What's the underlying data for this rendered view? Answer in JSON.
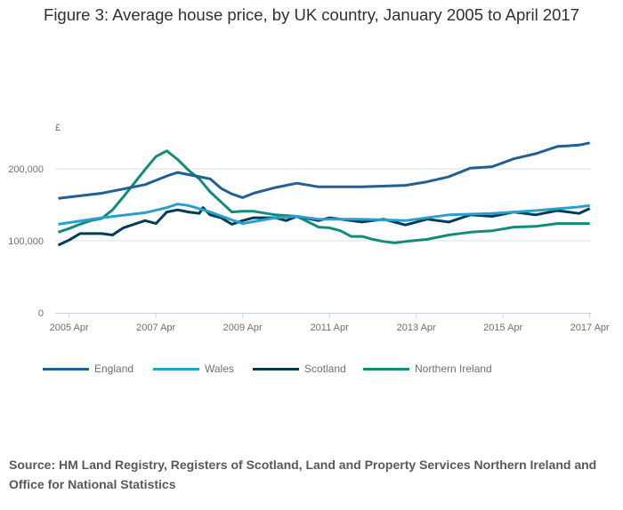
{
  "title": "Figure 3: Average house price, by UK country, January 2005 to April 2017",
  "source": "Source: HM Land Registry, Registers of Scotland, Land and Property Services Northern Ireland and Office for National Statistics",
  "chart_data": {
    "type": "line",
    "title": "Figure 3: Average house price, by UK country, January 2005 to April 2017",
    "ylabel": "£",
    "xlabel": "",
    "ylim": [
      0,
      250000
    ],
    "yticks": [
      0,
      100000,
      200000
    ],
    "ytick_labels": [
      "0",
      "100,000",
      "200,000"
    ],
    "xticks": [
      "2005-04",
      "2007-04",
      "2009-04",
      "2011-04",
      "2013-04",
      "2015-04",
      "2017-04"
    ],
    "xtick_labels": [
      "2005 Apr",
      "2007 Apr",
      "2009 Apr",
      "2011 Apr",
      "2013 Apr",
      "2015 Apr",
      "2017 Apr"
    ],
    "grid": true,
    "legend_position": "bottom",
    "series": [
      {
        "name": "England",
        "color": "#206095",
        "points": [
          [
            "2005-01",
            159000
          ],
          [
            "2006-01",
            166000
          ],
          [
            "2007-01",
            178000
          ],
          [
            "2007-07",
            190000
          ],
          [
            "2007-10",
            195000
          ],
          [
            "2008-01",
            192000
          ],
          [
            "2008-04",
            189000
          ],
          [
            "2008-07",
            186000
          ],
          [
            "2008-10",
            173000
          ],
          [
            "2009-01",
            165000
          ],
          [
            "2009-04",
            160000
          ],
          [
            "2009-07",
            166000
          ],
          [
            "2010-01",
            174000
          ],
          [
            "2010-07",
            180000
          ],
          [
            "2011-01",
            175000
          ],
          [
            "2012-01",
            175000
          ],
          [
            "2013-01",
            177000
          ],
          [
            "2013-07",
            182000
          ],
          [
            "2014-01",
            189000
          ],
          [
            "2014-07",
            201000
          ],
          [
            "2015-01",
            203000
          ],
          [
            "2015-07",
            214000
          ],
          [
            "2016-01",
            221000
          ],
          [
            "2016-07",
            231000
          ],
          [
            "2017-01",
            233000
          ],
          [
            "2017-04",
            236000
          ]
        ]
      },
      {
        "name": "Wales",
        "color": "#27a0cc",
        "points": [
          [
            "2005-01",
            123000
          ],
          [
            "2006-01",
            132000
          ],
          [
            "2007-01",
            139000
          ],
          [
            "2007-07",
            146000
          ],
          [
            "2007-10",
            151000
          ],
          [
            "2008-01",
            149000
          ],
          [
            "2008-07",
            140000
          ],
          [
            "2009-01",
            129000
          ],
          [
            "2009-04",
            124000
          ],
          [
            "2010-01",
            132000
          ],
          [
            "2010-07",
            134000
          ],
          [
            "2011-01",
            130000
          ],
          [
            "2012-01",
            130000
          ],
          [
            "2013-01",
            128000
          ],
          [
            "2014-01",
            136000
          ],
          [
            "2015-01",
            138000
          ],
          [
            "2016-01",
            142000
          ],
          [
            "2017-01",
            147000
          ],
          [
            "2017-04",
            149000
          ]
        ]
      },
      {
        "name": "Scotland",
        "color": "#003c57",
        "points": [
          [
            "2005-01",
            94000
          ],
          [
            "2005-04",
            101000
          ],
          [
            "2005-07",
            110000
          ],
          [
            "2006-01",
            110000
          ],
          [
            "2006-04",
            108000
          ],
          [
            "2006-07",
            118000
          ],
          [
            "2007-01",
            128000
          ],
          [
            "2007-04",
            124000
          ],
          [
            "2007-07",
            140000
          ],
          [
            "2007-10",
            143000
          ],
          [
            "2008-01",
            140000
          ],
          [
            "2008-04",
            138000
          ],
          [
            "2008-05",
            146000
          ],
          [
            "2008-07",
            136000
          ],
          [
            "2008-10",
            132000
          ],
          [
            "2009-01",
            123000
          ],
          [
            "2009-04",
            128000
          ],
          [
            "2009-07",
            132000
          ],
          [
            "2010-01",
            132000
          ],
          [
            "2010-04",
            128000
          ],
          [
            "2010-07",
            134000
          ],
          [
            "2011-01",
            128000
          ],
          [
            "2011-04",
            132000
          ],
          [
            "2012-01",
            126000
          ],
          [
            "2012-07",
            130000
          ],
          [
            "2013-01",
            122000
          ],
          [
            "2013-07",
            130000
          ],
          [
            "2014-01",
            126000
          ],
          [
            "2014-07",
            136000
          ],
          [
            "2015-01",
            134000
          ],
          [
            "2015-07",
            140000
          ],
          [
            "2016-01",
            136000
          ],
          [
            "2016-07",
            142000
          ],
          [
            "2017-01",
            138000
          ],
          [
            "2017-04",
            145000
          ]
        ]
      },
      {
        "name": "Northern Ireland",
        "color": "#118c7b",
        "points": [
          [
            "2005-01",
            112000
          ],
          [
            "2005-04",
            117000
          ],
          [
            "2005-07",
            123000
          ],
          [
            "2005-10",
            128000
          ],
          [
            "2006-01",
            131000
          ],
          [
            "2006-04",
            143000
          ],
          [
            "2006-07",
            161000
          ],
          [
            "2006-10",
            180000
          ],
          [
            "2007-01",
            199000
          ],
          [
            "2007-04",
            217000
          ],
          [
            "2007-07",
            225000
          ],
          [
            "2007-10",
            213000
          ],
          [
            "2008-01",
            198000
          ],
          [
            "2008-04",
            186000
          ],
          [
            "2008-07",
            168000
          ],
          [
            "2008-10",
            154000
          ],
          [
            "2009-01",
            140000
          ],
          [
            "2009-04",
            141000
          ],
          [
            "2009-07",
            141000
          ],
          [
            "2010-01",
            136000
          ],
          [
            "2010-07",
            134000
          ],
          [
            "2011-01",
            119000
          ],
          [
            "2011-04",
            118000
          ],
          [
            "2011-07",
            114000
          ],
          [
            "2011-10",
            106000
          ],
          [
            "2012-01",
            106000
          ],
          [
            "2012-04",
            102000
          ],
          [
            "2012-07",
            99000
          ],
          [
            "2012-10",
            97000
          ],
          [
            "2013-01",
            99000
          ],
          [
            "2013-07",
            102000
          ],
          [
            "2014-01",
            108000
          ],
          [
            "2014-07",
            112000
          ],
          [
            "2015-01",
            114000
          ],
          [
            "2015-07",
            119000
          ],
          [
            "2016-01",
            120000
          ],
          [
            "2016-07",
            124000
          ],
          [
            "2017-01",
            124000
          ],
          [
            "2017-04",
            124000
          ]
        ]
      }
    ]
  }
}
